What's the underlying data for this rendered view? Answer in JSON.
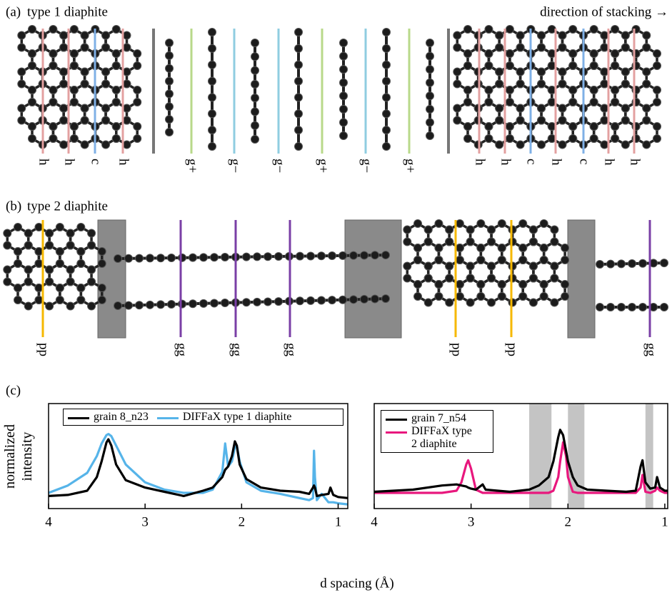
{
  "panel_a": {
    "label": "(a)",
    "title": "type 1  diaphite",
    "direction": "direction of stacking →",
    "layers": [
      "h",
      "h",
      "c",
      "h",
      "g+",
      "g−",
      "g−",
      "g+",
      "g−",
      "g+",
      "h",
      "h",
      "c",
      "h",
      "c",
      "h",
      "h"
    ]
  },
  "panel_b": {
    "label": "(b)",
    "title": "type 2  diaphite",
    "layers": [
      "pp",
      "gg",
      "gg",
      "gg",
      "pp",
      "pp",
      "gg"
    ]
  },
  "panel_c": {
    "label": "(c)"
  },
  "chart_data": [
    {
      "type": "line",
      "ylabel": "normalized intensity",
      "xlabel": "d spacing (Å)",
      "x": [
        4.0,
        3.8,
        3.6,
        3.5,
        3.45,
        3.4,
        3.38,
        3.35,
        3.3,
        3.2,
        3.0,
        2.8,
        2.6,
        2.4,
        2.3,
        2.2,
        2.17,
        2.14,
        2.1,
        2.07,
        2.05,
        2.02,
        1.95,
        1.8,
        1.6,
        1.4,
        1.3,
        1.26,
        1.25,
        1.24,
        1.22,
        1.17,
        1.1,
        1.08,
        1.05,
        1.0,
        0.9
      ],
      "series": [
        {
          "name": "DIFFaX type 1 diaphite",
          "color": "#56b4e9",
          "values": [
            0.15,
            0.22,
            0.34,
            0.5,
            0.62,
            0.7,
            0.71,
            0.69,
            0.6,
            0.42,
            0.25,
            0.18,
            0.15,
            0.15,
            0.18,
            0.35,
            0.62,
            0.4,
            0.45,
            0.58,
            0.6,
            0.45,
            0.25,
            0.17,
            0.14,
            0.1,
            0.08,
            0.1,
            0.55,
            0.3,
            0.08,
            0.14,
            0.06,
            0.06,
            0.06,
            0.05,
            0.04
          ]
        },
        {
          "name": "grain 8_n23",
          "color": "#000000",
          "values": [
            0.12,
            0.13,
            0.17,
            0.3,
            0.45,
            0.63,
            0.66,
            0.6,
            0.42,
            0.27,
            0.2,
            0.16,
            0.12,
            0.17,
            0.2,
            0.3,
            0.37,
            0.4,
            0.5,
            0.64,
            0.6,
            0.42,
            0.28,
            0.2,
            0.17,
            0.16,
            0.14,
            0.2,
            0.22,
            0.2,
            0.12,
            0.13,
            0.14,
            0.2,
            0.13,
            0.11,
            0.1
          ]
        }
      ],
      "legend_order": [
        1,
        0
      ],
      "xlim": [
        4,
        0.9
      ],
      "ylim": [
        0,
        1
      ],
      "xticks": [
        4,
        3,
        2,
        1
      ]
    },
    {
      "type": "line",
      "x": [
        4.0,
        3.6,
        3.3,
        3.15,
        3.1,
        3.05,
        3.03,
        3.0,
        2.95,
        2.88,
        2.85,
        2.6,
        2.4,
        2.3,
        2.2,
        2.15,
        2.1,
        2.08,
        2.05,
        2.02,
        2.0,
        1.95,
        1.9,
        1.8,
        1.6,
        1.4,
        1.3,
        1.25,
        1.23,
        1.2,
        1.15,
        1.1,
        1.08,
        1.05,
        1.0,
        0.97
      ],
      "bands": [
        [
          2.4,
          2.17
        ],
        [
          2.0,
          1.83
        ],
        [
          1.2,
          1.12
        ]
      ],
      "band_color": "#c4c4c4",
      "series": [
        {
          "name": "DIFFaX type 2 diaphite",
          "color": "#e8177d",
          "values": [
            0.15,
            0.15,
            0.15,
            0.17,
            0.25,
            0.42,
            0.46,
            0.38,
            0.18,
            0.15,
            0.15,
            0.15,
            0.15,
            0.15,
            0.15,
            0.17,
            0.3,
            0.45,
            0.63,
            0.5,
            0.3,
            0.16,
            0.15,
            0.15,
            0.15,
            0.15,
            0.15,
            0.2,
            0.32,
            0.16,
            0.15,
            0.17,
            0.2,
            0.17,
            0.15,
            0.15
          ]
        },
        {
          "name": "grain 7_n54",
          "color": "#000000",
          "values": [
            0.16,
            0.18,
            0.22,
            0.23,
            0.22,
            0.21,
            0.2,
            0.19,
            0.18,
            0.23,
            0.18,
            0.16,
            0.18,
            0.22,
            0.3,
            0.45,
            0.68,
            0.75,
            0.7,
            0.55,
            0.45,
            0.3,
            0.22,
            0.18,
            0.17,
            0.16,
            0.17,
            0.4,
            0.46,
            0.25,
            0.19,
            0.2,
            0.3,
            0.2,
            0.17,
            0.17
          ]
        }
      ],
      "legend_order": [
        1,
        0
      ],
      "xlim": [
        4,
        0.97
      ],
      "ylim": [
        0,
        1
      ],
      "xticks": [
        4,
        3,
        2,
        1
      ]
    }
  ]
}
